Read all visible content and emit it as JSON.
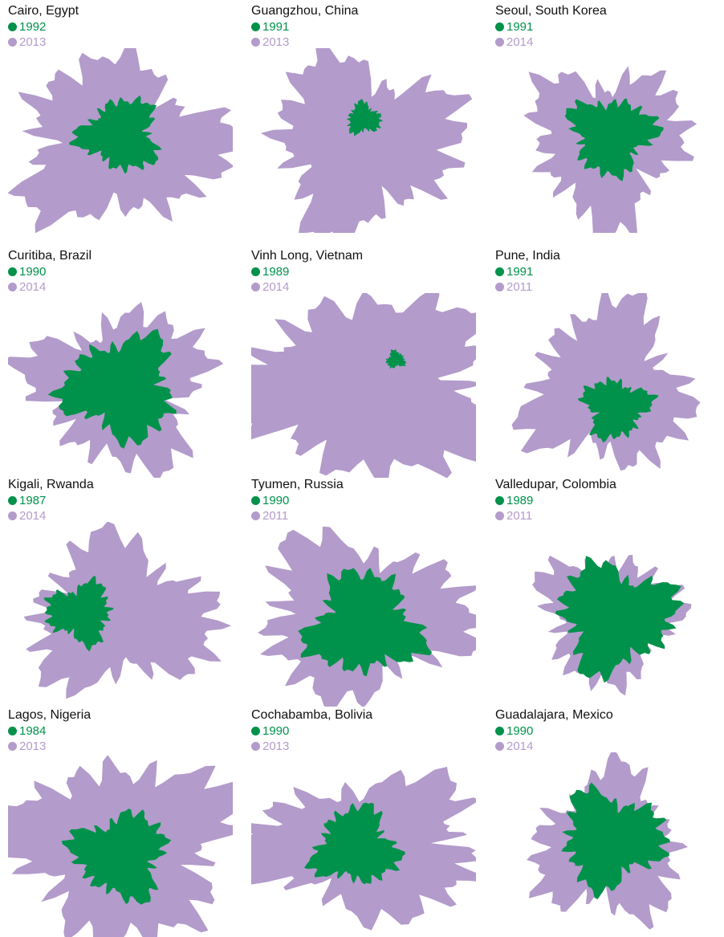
{
  "panels": [
    {
      "title": "Cairo, Egypt",
      "before": "1992",
      "after": "2013"
    },
    {
      "title": "Guangzhou, China",
      "before": "1991",
      "after": "2013"
    },
    {
      "title": "Seoul, South Korea",
      "before": "1991",
      "after": "2014"
    },
    {
      "title": "Curitiba, Brazil",
      "before": "1990",
      "after": "2014"
    },
    {
      "title": "Vinh Long, Vietnam",
      "before": "1989",
      "after": "2014"
    },
    {
      "title": "Pune, India",
      "before": "1991",
      "after": "2011"
    },
    {
      "title": "Kigali, Rwanda",
      "before": "1987",
      "after": "2014"
    },
    {
      "title": "Tyumen, Russia",
      "before": "1990",
      "after": "2011"
    },
    {
      "title": "Valledupar, Colombia",
      "before": "1989",
      "after": "2011"
    },
    {
      "title": "Lagos, Nigeria",
      "before": "1984",
      "after": "2013"
    },
    {
      "title": "Cochabamba, Bolivia",
      "before": "1990",
      "after": "2013"
    },
    {
      "title": "Guadalajara, Mexico",
      "before": "1990",
      "after": "2014"
    }
  ]
}
